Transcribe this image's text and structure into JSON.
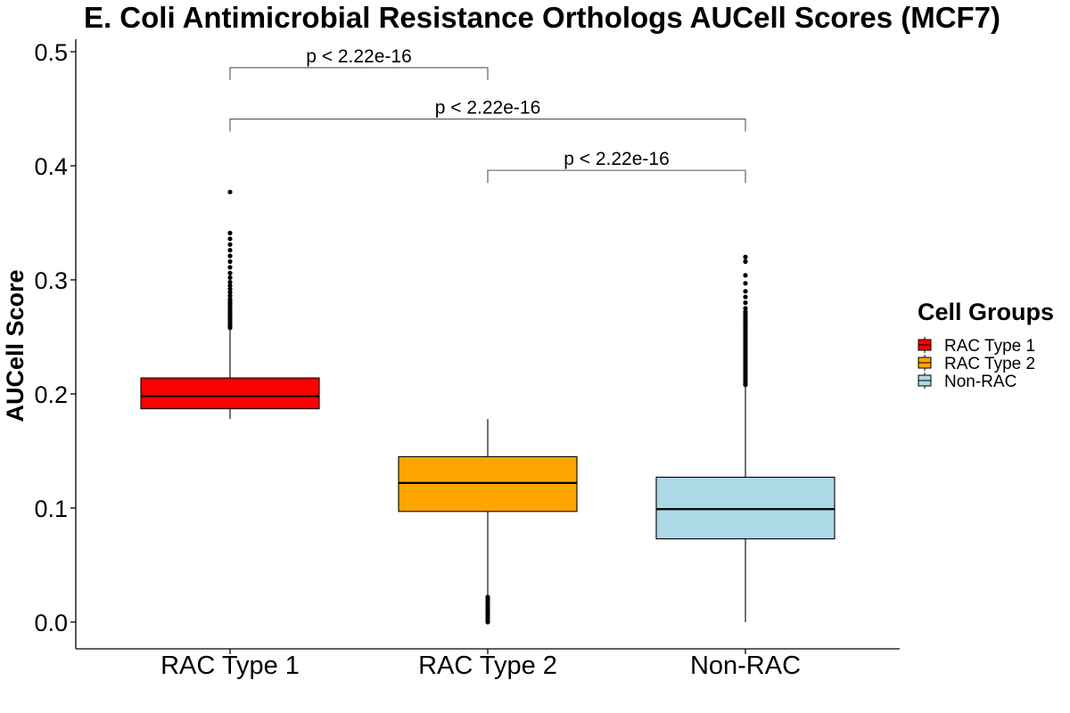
{
  "chart_data": {
    "type": "box",
    "title": "E. Coli Antimicrobial Resistance Orthologs AUCell Scores (MCF7)",
    "xlabel": "",
    "ylabel": "AUCell Score",
    "ylim": [
      -0.024,
      0.51
    ],
    "yticks": [
      "0.0",
      "0.1",
      "0.2",
      "0.3",
      "0.4",
      "0.5"
    ],
    "categories": [
      "RAC Type 1",
      "RAC Type 2",
      "Non-RAC"
    ],
    "grid": false,
    "legend": {
      "title": "Cell Groups",
      "position": "right",
      "entries": [
        "RAC Type 1",
        "RAC Type 2",
        "Non-RAC"
      ]
    },
    "boxes": [
      {
        "category": "RAC Type 1",
        "color": "#ff0000",
        "whisker_low": 0.178,
        "q1": 0.187,
        "median": 0.198,
        "q3": 0.214,
        "whisker_high": 0.256,
        "outliers": [
          0.258,
          0.259,
          0.261,
          0.263,
          0.265,
          0.267,
          0.269,
          0.271,
          0.273,
          0.275,
          0.277,
          0.279,
          0.281,
          0.283,
          0.286,
          0.289,
          0.292,
          0.295,
          0.298,
          0.302,
          0.306,
          0.311,
          0.316,
          0.321,
          0.326,
          0.331,
          0.336,
          0.341,
          0.377
        ]
      },
      {
        "category": "RAC Type 2",
        "color": "#ffa500",
        "whisker_low": 0.024,
        "q1": 0.097,
        "median": 0.122,
        "q3": 0.145,
        "whisker_high": 0.178,
        "outliers": [
          0.0,
          0.002,
          0.004,
          0.006,
          0.008,
          0.01,
          0.012,
          0.014,
          0.016,
          0.018,
          0.02,
          0.022
        ]
      },
      {
        "category": "Non-RAC",
        "color": "#add8e6",
        "whisker_low": 0.0,
        "q1": 0.073,
        "median": 0.099,
        "q3": 0.127,
        "whisker_high": 0.206,
        "outliers": [
          0.208,
          0.21,
          0.212,
          0.214,
          0.216,
          0.218,
          0.22,
          0.222,
          0.224,
          0.226,
          0.228,
          0.23,
          0.232,
          0.234,
          0.236,
          0.238,
          0.24,
          0.242,
          0.244,
          0.246,
          0.248,
          0.25,
          0.252,
          0.254,
          0.256,
          0.258,
          0.26,
          0.262,
          0.264,
          0.266,
          0.268,
          0.27,
          0.272,
          0.275,
          0.28,
          0.285,
          0.29,
          0.297,
          0.304,
          0.316,
          0.32
        ]
      }
    ],
    "comparisons": [
      {
        "from": "RAC Type 1",
        "to": "RAC Type 2",
        "label": "p < 2.22e-16",
        "y_bar": 0.486,
        "y_tick_low": 0.475
      },
      {
        "from": "RAC Type 1",
        "to": "Non-RAC",
        "label": "p < 2.22e-16",
        "y_bar": 0.441,
        "y_tick_low": 0.43
      },
      {
        "from": "RAC Type 2",
        "to": "Non-RAC",
        "label": "p < 2.22e-16",
        "y_bar": 0.396,
        "y_tick_low": 0.385
      }
    ]
  }
}
